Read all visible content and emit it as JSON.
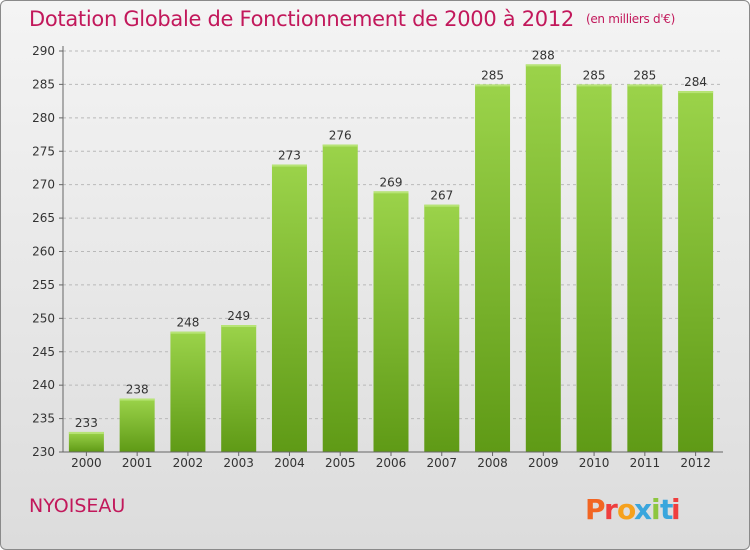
{
  "title": "Dotation Globale de Fonctionnement de 2000 à 2012",
  "unit": "(en milliers d'€)",
  "commune": "NYOISEAU",
  "logo": {
    "text": "Proxiti",
    "letter_colors": [
      "#f26522",
      "#ef3e3e",
      "#f6a11d",
      "#3aa6dd",
      "#8dc63f",
      "#3aa6dd",
      "#ef3e3e"
    ]
  },
  "colors": {
    "title": "#c2185b",
    "bar_top": "#9bd34a",
    "bar_bottom": "#5f9a16"
  },
  "chart_data": {
    "type": "bar",
    "title": "Dotation Globale de Fonctionnement de 2000 à 2012",
    "xlabel": "",
    "ylabel": "",
    "categories": [
      "2000",
      "2001",
      "2002",
      "2003",
      "2004",
      "2005",
      "2006",
      "2007",
      "2008",
      "2009",
      "2010",
      "2011",
      "2012"
    ],
    "values": [
      233,
      238,
      248,
      249,
      273,
      276,
      269,
      267,
      285,
      288,
      285,
      285,
      284
    ],
    "ylim": [
      230,
      290
    ],
    "yticks": [
      230,
      235,
      240,
      245,
      250,
      255,
      260,
      265,
      270,
      275,
      280,
      285,
      290
    ],
    "grid": true,
    "legend": "none"
  }
}
